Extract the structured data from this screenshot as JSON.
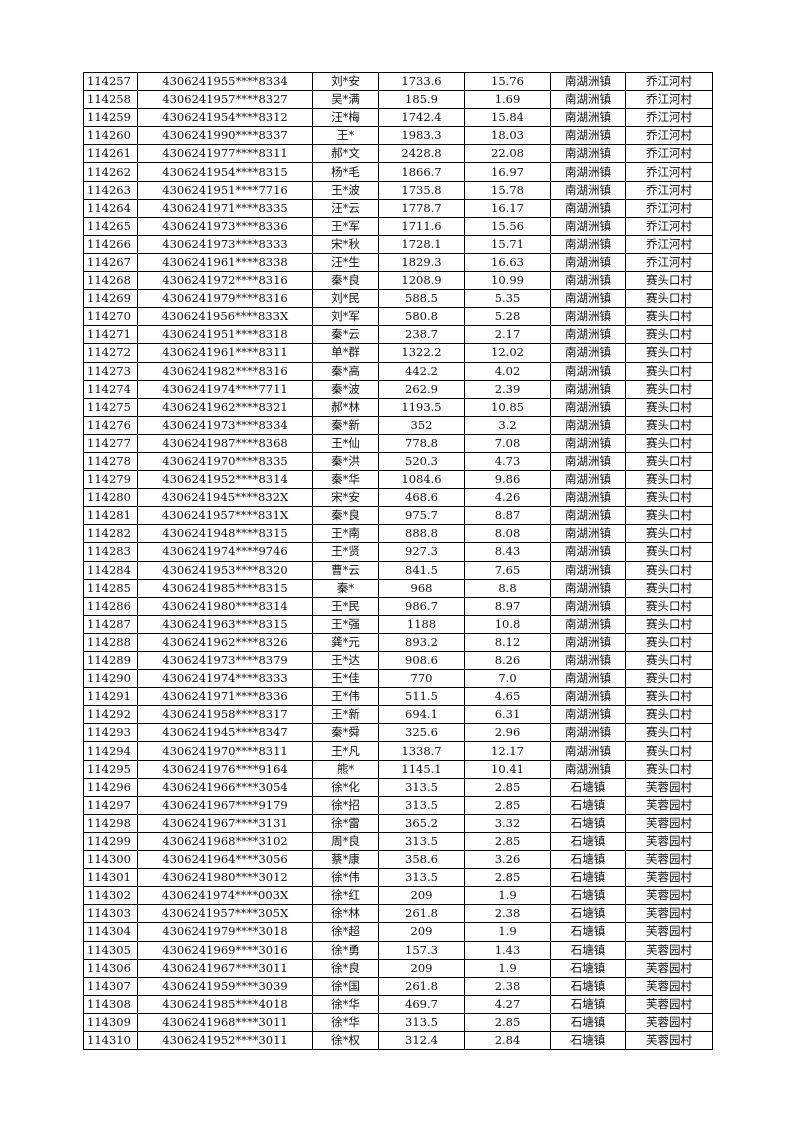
{
  "rows": [
    [
      "114257",
      "4306241955****8334",
      "刘*安",
      "1733.6",
      "15.76",
      "南湖洲镇",
      "乔江河村"
    ],
    [
      "114258",
      "4306241957****8327",
      "吴*满",
      "185.9",
      "1.69",
      "南湖洲镇",
      "乔江河村"
    ],
    [
      "114259",
      "4306241954****8312",
      "汪*梅",
      "1742.4",
      "15.84",
      "南湖洲镇",
      "乔江河村"
    ],
    [
      "114260",
      "4306241990****8337",
      "王*",
      "1983.3",
      "18.03",
      "南湖洲镇",
      "乔江河村"
    ],
    [
      "114261",
      "4306241977****8311",
      "郝*文",
      "2428.8",
      "22.08",
      "南湖洲镇",
      "乔江河村"
    ],
    [
      "114262",
      "4306241954****8315",
      "杨*毛",
      "1866.7",
      "16.97",
      "南湖洲镇",
      "乔江河村"
    ],
    [
      "114263",
      "4306241951****7716",
      "王*波",
      "1735.8",
      "15.78",
      "南湖洲镇",
      "乔江河村"
    ],
    [
      "114264",
      "4306241971****8335",
      "汪*云",
      "1778.7",
      "16.17",
      "南湖洲镇",
      "乔江河村"
    ],
    [
      "114265",
      "4306241973****8336",
      "王*军",
      "1711.6",
      "15.56",
      "南湖洲镇",
      "乔江河村"
    ],
    [
      "114266",
      "4306241973****8333",
      "宋*秋",
      "1728.1",
      "15.71",
      "南湖洲镇",
      "乔江河村"
    ],
    [
      "114267",
      "4306241961****8338",
      "汪*生",
      "1829.3",
      "16.63",
      "南湖洲镇",
      "乔江河村"
    ],
    [
      "114268",
      "4306241972****8316",
      "秦*良",
      "1208.9",
      "10.99",
      "南湖洲镇",
      "赛头口村"
    ],
    [
      "114269",
      "4306241979****8316",
      "刘*民",
      "588.5",
      "5.35",
      "南湖洲镇",
      "赛头口村"
    ],
    [
      "114270",
      "4306241956****833X",
      "刘*军",
      "580.8",
      "5.28",
      "南湖洲镇",
      "赛头口村"
    ],
    [
      "114271",
      "4306241951****8318",
      "秦*云",
      "238.7",
      "2.17",
      "南湖洲镇",
      "赛头口村"
    ],
    [
      "114272",
      "4306241961****8311",
      "单*群",
      "1322.2",
      "12.02",
      "南湖洲镇",
      "赛头口村"
    ],
    [
      "114273",
      "4306241982****8316",
      "秦*高",
      "442.2",
      "4.02",
      "南湖洲镇",
      "赛头口村"
    ],
    [
      "114274",
      "4306241974****7711",
      "秦*波",
      "262.9",
      "2.39",
      "南湖洲镇",
      "赛头口村"
    ],
    [
      "114275",
      "4306241962****8321",
      "郝*林",
      "1193.5",
      "10.85",
      "南湖洲镇",
      "赛头口村"
    ],
    [
      "114276",
      "4306241973****8334",
      "秦*新",
      "352",
      "3.2",
      "南湖洲镇",
      "赛头口村"
    ],
    [
      "114277",
      "4306241987****8368",
      "王*仙",
      "778.8",
      "7.08",
      "南湖洲镇",
      "赛头口村"
    ],
    [
      "114278",
      "4306241970****8335",
      "秦*洪",
      "520.3",
      "4.73",
      "南湖洲镇",
      "赛头口村"
    ],
    [
      "114279",
      "4306241952****8314",
      "秦*华",
      "1084.6",
      "9.86",
      "南湖洲镇",
      "赛头口村"
    ],
    [
      "114280",
      "4306241945****832X",
      "宋*安",
      "468.6",
      "4.26",
      "南湖洲镇",
      "赛头口村"
    ],
    [
      "114281",
      "4306241957****831X",
      "秦*良",
      "975.7",
      "8.87",
      "南湖洲镇",
      "赛头口村"
    ],
    [
      "114282",
      "4306241948****8315",
      "王*南",
      "888.8",
      "8.08",
      "南湖洲镇",
      "赛头口村"
    ],
    [
      "114283",
      "4306241974****9746",
      "王*贤",
      "927.3",
      "8.43",
      "南湖洲镇",
      "赛头口村"
    ],
    [
      "114284",
      "4306241953****8320",
      "曹*云",
      "841.5",
      "7.65",
      "南湖洲镇",
      "赛头口村"
    ],
    [
      "114285",
      "4306241985****8315",
      "秦*",
      "968",
      "8.8",
      "南湖洲镇",
      "赛头口村"
    ],
    [
      "114286",
      "4306241980****8314",
      "王*民",
      "986.7",
      "8.97",
      "南湖洲镇",
      "赛头口村"
    ],
    [
      "114287",
      "4306241963****8315",
      "王*强",
      "1188",
      "10.8",
      "南湖洲镇",
      "赛头口村"
    ],
    [
      "114288",
      "4306241962****8326",
      "龚*元",
      "893.2",
      "8.12",
      "南湖洲镇",
      "赛头口村"
    ],
    [
      "114289",
      "4306241973****8379",
      "王*达",
      "908.6",
      "8.26",
      "南湖洲镇",
      "赛头口村"
    ],
    [
      "114290",
      "4306241974****8333",
      "王*佳",
      "770",
      "7.0",
      "南湖洲镇",
      "赛头口村"
    ],
    [
      "114291",
      "4306241971****8336",
      "王*伟",
      "511.5",
      "4.65",
      "南湖洲镇",
      "赛头口村"
    ],
    [
      "114292",
      "4306241958****8317",
      "王*新",
      "694.1",
      "6.31",
      "南湖洲镇",
      "赛头口村"
    ],
    [
      "114293",
      "4306241945****8347",
      "秦*舜",
      "325.6",
      "2.96",
      "南湖洲镇",
      "赛头口村"
    ],
    [
      "114294",
      "4306241970****8311",
      "王*凡",
      "1338.7",
      "12.17",
      "南湖洲镇",
      "赛头口村"
    ],
    [
      "114295",
      "4306241976****9164",
      "熊*",
      "1145.1",
      "10.41",
      "南湖洲镇",
      "赛头口村"
    ],
    [
      "114296",
      "4306241966****3054",
      "徐*化",
      "313.5",
      "2.85",
      "石塘镇",
      "芙蓉园村"
    ],
    [
      "114297",
      "4306241967****9179",
      "徐*招",
      "313.5",
      "2.85",
      "石塘镇",
      "芙蓉园村"
    ],
    [
      "114298",
      "4306241967****3131",
      "徐*雷",
      "365.2",
      "3.32",
      "石塘镇",
      "芙蓉园村"
    ],
    [
      "114299",
      "4306241968****3102",
      "周*良",
      "313.5",
      "2.85",
      "石塘镇",
      "芙蓉园村"
    ],
    [
      "114300",
      "4306241964****3056",
      "蔡*康",
      "358.6",
      "3.26",
      "石塘镇",
      "芙蓉园村"
    ],
    [
      "114301",
      "4306241980****3012",
      "徐*伟",
      "313.5",
      "2.85",
      "石塘镇",
      "芙蓉园村"
    ],
    [
      "114302",
      "4306241974****003X",
      "徐*红",
      "209",
      "1.9",
      "石塘镇",
      "芙蓉园村"
    ],
    [
      "114303",
      "4306241957****305X",
      "徐*林",
      "261.8",
      "2.38",
      "石塘镇",
      "芙蓉园村"
    ],
    [
      "114304",
      "4306241979****3018",
      "徐*超",
      "209",
      "1.9",
      "石塘镇",
      "芙蓉园村"
    ],
    [
      "114305",
      "4306241969****3016",
      "徐*勇",
      "157.3",
      "1.43",
      "石塘镇",
      "芙蓉园村"
    ],
    [
      "114306",
      "4306241967****3011",
      "徐*良",
      "209",
      "1.9",
      "石塘镇",
      "芙蓉园村"
    ],
    [
      "114307",
      "4306241959****3039",
      "徐*国",
      "261.8",
      "2.38",
      "石塘镇",
      "芙蓉园村"
    ],
    [
      "114308",
      "4306241985****4018",
      "徐*华",
      "469.7",
      "4.27",
      "石塘镇",
      "芙蓉园村"
    ],
    [
      "114309",
      "4306241968****3011",
      "徐*华",
      "313.5",
      "2.85",
      "石塘镇",
      "芙蓉园村"
    ],
    [
      "114310",
      "4306241952****3011",
      "徐*权",
      "312.4",
      "2.84",
      "石塘镇",
      "芙蓉园村"
    ]
  ]
}
